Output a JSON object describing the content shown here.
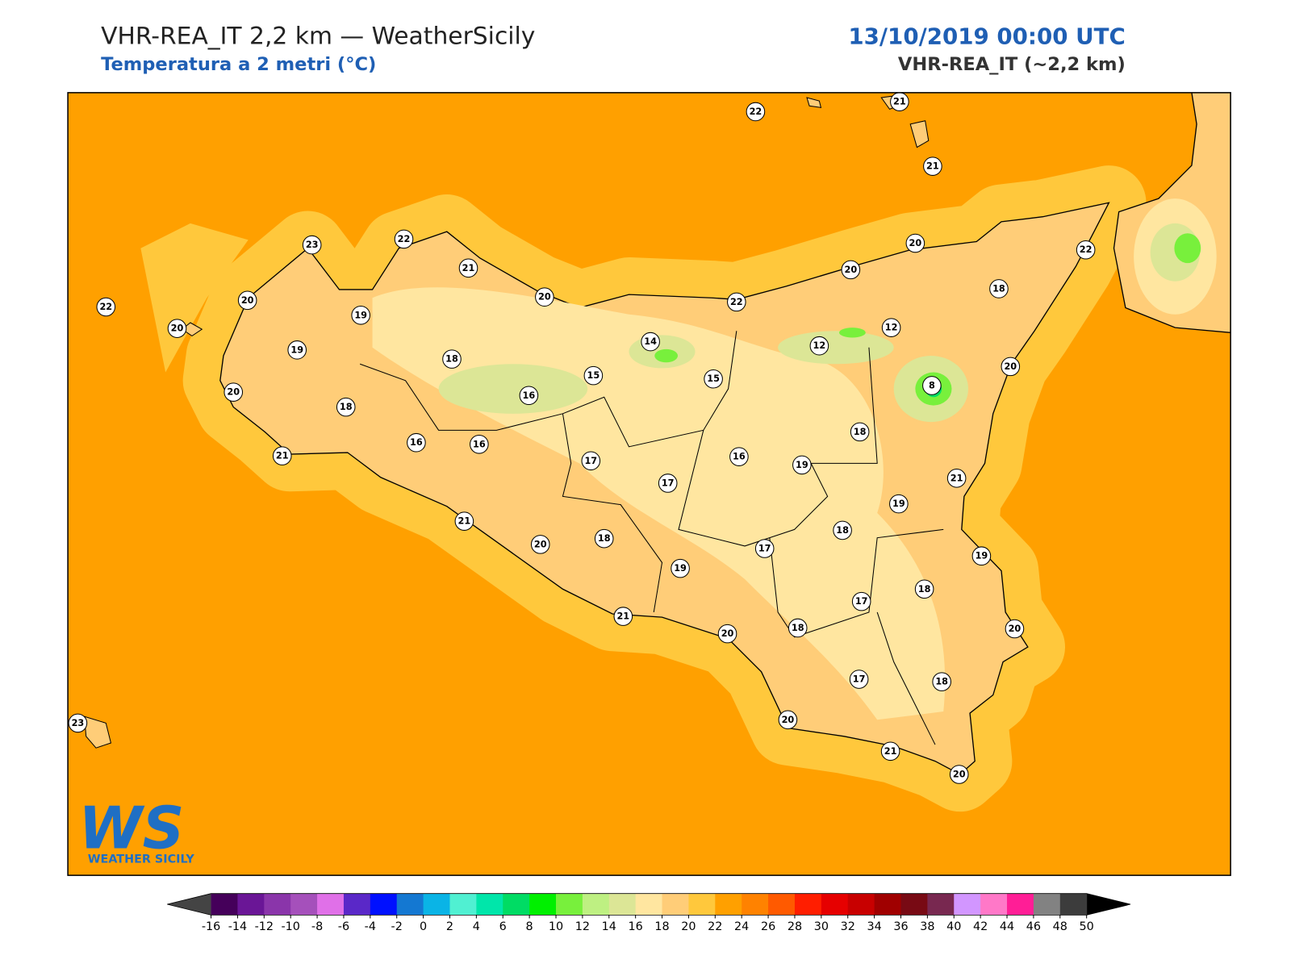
{
  "header": {
    "title": "VHR-REA_IT 2,2 km — WeatherSicily",
    "subtitle": "Temperatura a 2 metri (°C)",
    "date": "13/10/2019 00:00 UTC",
    "model": "VHR-REA_IT (~2,2 km)"
  },
  "map": {
    "sea_color": "#ffa000",
    "coast_color": "#ffc83c",
    "land_color": "#ffcd78",
    "inland_color": "#ffe6a0",
    "cool_color": "#dce696",
    "cold_color": "#78f03c",
    "station_values": [
      22,
      21,
      21,
      23,
      22,
      21,
      20,
      20,
      22,
      20,
      19,
      19,
      18,
      14,
      15,
      15,
      16,
      22,
      20,
      20,
      22,
      18,
      12,
      12,
      8,
      20,
      20,
      18,
      16,
      16,
      21,
      17,
      17,
      16,
      19,
      18,
      21,
      19,
      18,
      21,
      20,
      18,
      19,
      17,
      19,
      17,
      18,
      18,
      21,
      20,
      20,
      17,
      18,
      20,
      21,
      20,
      23
    ]
  },
  "logo": {
    "mark": "WS",
    "text": "WEATHER SICILY"
  },
  "colorbar": {
    "ticks": [
      -16,
      -14,
      -12,
      -10,
      -8,
      -6,
      -4,
      -2,
      0,
      2,
      4,
      6,
      8,
      10,
      12,
      14,
      16,
      18,
      20,
      22,
      24,
      26,
      28,
      30,
      32,
      34,
      36,
      38,
      40,
      42,
      44,
      46,
      48,
      50
    ],
    "colors": [
      "#45005a",
      "#6a1696",
      "#8a35aa",
      "#a550bb",
      "#e070e8",
      "#5a28c8",
      "#0010ff",
      "#1478d2",
      "#0ab4e6",
      "#50f0d2",
      "#00e6aa",
      "#00dc64",
      "#00f000",
      "#78f03c",
      "#bef082",
      "#dce696",
      "#ffe6a0",
      "#ffcd78",
      "#ffc83c",
      "#ffa000",
      "#ff8200",
      "#ff5a00",
      "#ff1e00",
      "#e60000",
      "#c80000",
      "#a00000",
      "#780a14",
      "#782850",
      "#d296ff",
      "#ff78c8",
      "#ff1e96",
      "#828282",
      "#3c3c3c"
    ],
    "under_color": "#444444",
    "over_color": "#000000"
  }
}
